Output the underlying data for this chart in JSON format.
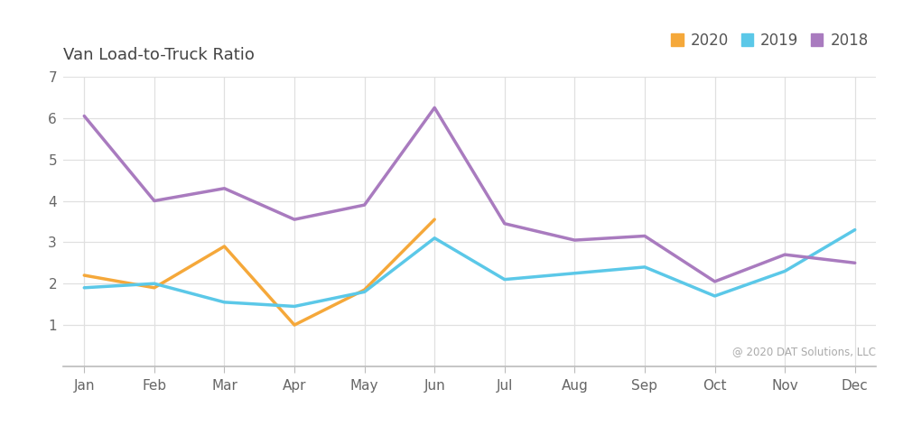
{
  "title": "Van Load-to-Truck Ratio",
  "months": [
    "Jan",
    "Feb",
    "Mar",
    "Apr",
    "May",
    "Jun",
    "Jul",
    "Aug",
    "Sep",
    "Oct",
    "Nov",
    "Dec"
  ],
  "series": {
    "2020": {
      "values": [
        2.2,
        1.9,
        2.9,
        1.0,
        1.85,
        3.55,
        null,
        null,
        null,
        null,
        null,
        null
      ],
      "color": "#F5A83A",
      "linewidth": 2.5
    },
    "2019": {
      "values": [
        1.9,
        2.0,
        1.55,
        1.45,
        1.8,
        3.1,
        2.1,
        2.25,
        2.4,
        1.7,
        2.3,
        3.3
      ],
      "color": "#5BC8E8",
      "linewidth": 2.5
    },
    "2018": {
      "values": [
        6.05,
        4.0,
        4.3,
        3.55,
        3.9,
        6.25,
        3.45,
        3.05,
        3.15,
        2.05,
        2.7,
        2.5
      ],
      "color": "#A97BBF",
      "linewidth": 2.5
    }
  },
  "legend_order": [
    "2020",
    "2019",
    "2018"
  ],
  "ylim": [
    0,
    7
  ],
  "yticks": [
    1,
    2,
    3,
    4,
    5,
    6,
    7
  ],
  "background_color": "#ffffff",
  "grid_color": "#e0e0e0",
  "annotation": "@ 2020 DAT Solutions, LLC",
  "annotation_color": "#aaaaaa",
  "title_fontsize": 13,
  "tick_fontsize": 11,
  "legend_fontsize": 12
}
